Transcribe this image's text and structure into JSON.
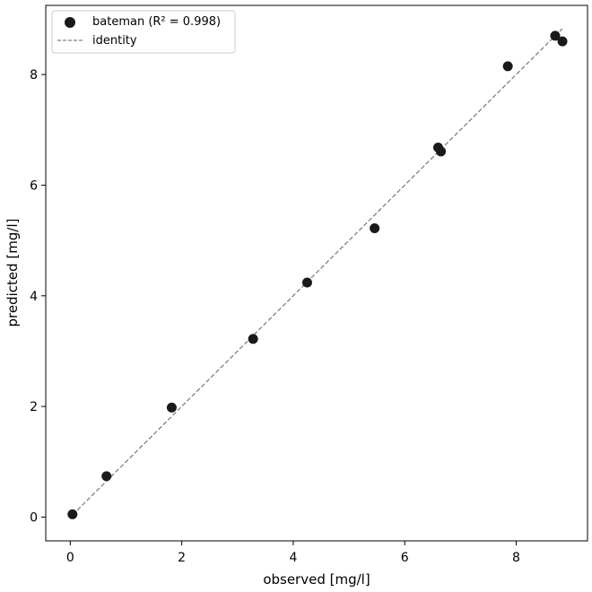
{
  "chart_data": {
    "type": "scatter",
    "title": "",
    "xlabel": "observed [mg/l]",
    "ylabel": "predicted [mg/l]",
    "xlim": [
      -0.44,
      9.28
    ],
    "ylim": [
      -0.43,
      9.25
    ],
    "xticks": [
      0,
      2,
      4,
      6,
      8
    ],
    "yticks": [
      0,
      2,
      4,
      6,
      8
    ],
    "grid": false,
    "legend_position": "top-left",
    "series": [
      {
        "name": "bateman (R² = 0.998)",
        "kind": "scatter",
        "color": "#1a1a1a",
        "points": [
          {
            "x": 0.04,
            "y": 0.05
          },
          {
            "x": 0.65,
            "y": 0.74
          },
          {
            "x": 1.82,
            "y": 1.98
          },
          {
            "x": 3.28,
            "y": 3.22
          },
          {
            "x": 4.25,
            "y": 4.24
          },
          {
            "x": 5.46,
            "y": 5.22
          },
          {
            "x": 6.6,
            "y": 6.68
          },
          {
            "x": 6.65,
            "y": 6.61
          },
          {
            "x": 7.85,
            "y": 8.15
          },
          {
            "x": 8.7,
            "y": 8.7
          },
          {
            "x": 8.83,
            "y": 8.6
          }
        ]
      },
      {
        "name": "identity",
        "kind": "line",
        "style": "dashed",
        "color": "#808080",
        "points": [
          {
            "x": 0.04,
            "y": 0.04
          },
          {
            "x": 8.83,
            "y": 8.83
          }
        ]
      }
    ]
  }
}
